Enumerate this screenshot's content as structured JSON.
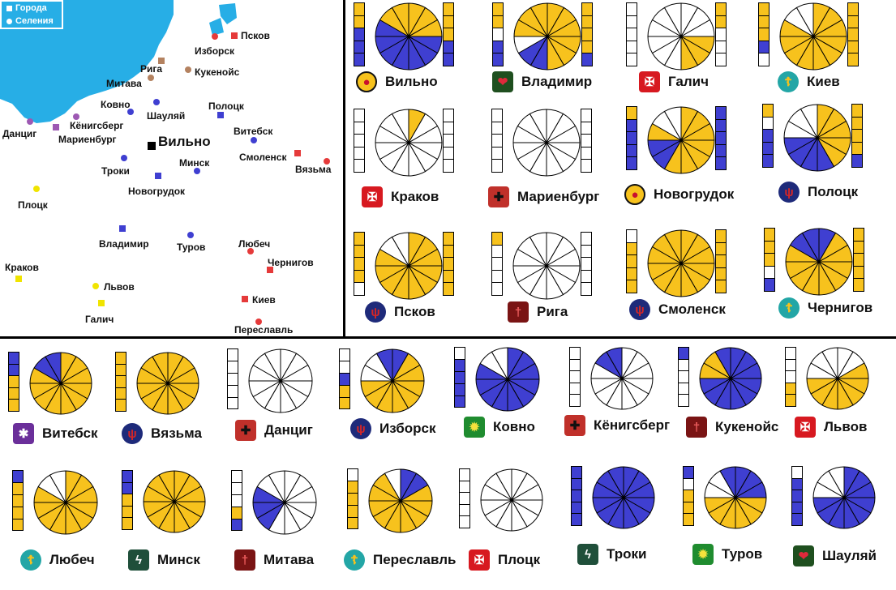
{
  "colors": {
    "sea": "#27aee6",
    "gold": "#f7c21d",
    "blue": "#3f3fd1",
    "empty": "#ffffff",
    "outline": "#000000",
    "town_red": "#e53a3a",
    "town_blue": "#3f3fd1",
    "town_yellow": "#f0e400",
    "town_brown": "#b48260",
    "town_purple": "#9d59b3",
    "town_black": "#000000"
  },
  "legend": {
    "cities_label": "Города",
    "settlements_label": "Селения"
  },
  "map": {
    "cities": [
      {
        "id": "pskov",
        "name": "Псков",
        "marker": "square",
        "color": "red"
      },
      {
        "id": "izborsk",
        "name": "Изборск",
        "marker": "circle",
        "color": "red"
      },
      {
        "id": "riga",
        "name": "Рига",
        "marker": "square",
        "color": "brown"
      },
      {
        "id": "kukenois",
        "name": "Кукенойс",
        "marker": "circle",
        "color": "brown"
      },
      {
        "id": "mitava",
        "name": "Митава",
        "marker": "circle",
        "color": "brown"
      },
      {
        "id": "kovno",
        "name": "Ковно",
        "marker": "circle",
        "color": "blue"
      },
      {
        "id": "shaulyai",
        "name": "Шауляй",
        "marker": "circle",
        "color": "blue"
      },
      {
        "id": "polotsk",
        "name": "Полоцк",
        "marker": "square",
        "color": "blue"
      },
      {
        "id": "dantsig",
        "name": "Данциг",
        "marker": "circle",
        "color": "purple"
      },
      {
        "id": "konigsberg",
        "name": "Кёнигсберг",
        "marker": "circle",
        "color": "purple"
      },
      {
        "id": "marienburg",
        "name": "Мариенбург",
        "marker": "square",
        "color": "purple"
      },
      {
        "id": "vilno",
        "name": "Вильно",
        "marker": "square",
        "color": "black"
      },
      {
        "id": "vitebsk",
        "name": "Витебск",
        "marker": "circle",
        "color": "blue"
      },
      {
        "id": "smolensk",
        "name": "Смоленск",
        "marker": "square",
        "color": "red"
      },
      {
        "id": "vyazma",
        "name": "Вязьма",
        "marker": "circle",
        "color": "red"
      },
      {
        "id": "minsk",
        "name": "Минск",
        "marker": "circle",
        "color": "blue"
      },
      {
        "id": "troki",
        "name": "Троки",
        "marker": "circle",
        "color": "blue"
      },
      {
        "id": "novogrudok",
        "name": "Новогрудок",
        "marker": "square",
        "color": "blue"
      },
      {
        "id": "plotsk",
        "name": "Плоцк",
        "marker": "circle",
        "color": "yellow"
      },
      {
        "id": "vladimir",
        "name": "Владимир",
        "marker": "square",
        "color": "blue"
      },
      {
        "id": "turov",
        "name": "Туров",
        "marker": "circle",
        "color": "blue"
      },
      {
        "id": "lyubech",
        "name": "Любеч",
        "marker": "circle",
        "color": "red"
      },
      {
        "id": "chernigov",
        "name": "Чернигов",
        "marker": "square",
        "color": "red"
      },
      {
        "id": "krakov",
        "name": "Краков",
        "marker": "square",
        "color": "yellow"
      },
      {
        "id": "lvov",
        "name": "Львов",
        "marker": "circle",
        "color": "yellow"
      },
      {
        "id": "galich",
        "name": "Галич",
        "marker": "square",
        "color": "yellow"
      },
      {
        "id": "kiev",
        "name": "Киев",
        "marker": "square",
        "color": "red"
      },
      {
        "id": "pereslavl",
        "name": "Переславль",
        "marker": "circle",
        "color": "red"
      }
    ]
  },
  "panels": [
    {
      "name": "Вильно",
      "emblem": "flame",
      "pie": [
        "gold",
        "gold",
        "gold",
        "blue",
        "blue",
        "blue",
        "blue",
        "blue",
        "blue",
        "blue",
        "gold",
        "gold"
      ],
      "left": [
        "gold",
        "gold",
        "blue",
        "blue",
        "blue"
      ],
      "right": [
        "gold",
        "gold",
        "gold",
        "blue",
        "blue"
      ]
    },
    {
      "name": "Владимир",
      "emblem": "heart",
      "pie": [
        "gold",
        "gold",
        "gold",
        "gold",
        "gold",
        "gold",
        "blue",
        "blue",
        "white",
        "gold",
        "gold",
        "gold"
      ],
      "left": [
        "gold",
        "gold",
        "white",
        "blue",
        "blue"
      ],
      "right": [
        "gold",
        "gold",
        "gold",
        "gold",
        "blue"
      ]
    },
    {
      "name": "Галич",
      "emblem": "eagle",
      "pie": [
        "white",
        "white",
        "white",
        "gold",
        "gold",
        "gold",
        "white",
        "white",
        "white",
        "white",
        "white",
        "white"
      ],
      "left": [
        "white",
        "white",
        "white",
        "white",
        "white"
      ],
      "right": [
        "gold",
        "gold",
        "white",
        "white",
        "white"
      ]
    },
    {
      "name": "Киев",
      "emblem": "cross",
      "pie": [
        "gold",
        "gold",
        "gold",
        "gold",
        "gold",
        "gold",
        "gold",
        "gold",
        "gold",
        "gold",
        "white",
        "white"
      ],
      "left": [
        "gold",
        "gold",
        "gold",
        "blue",
        "white"
      ],
      "right": [
        "gold",
        "gold",
        "gold",
        "gold",
        "gold"
      ]
    },
    {
      "name": "Краков",
      "emblem": "eagle",
      "pie": [
        "gold",
        "white",
        "white",
        "white",
        "white",
        "white",
        "white",
        "white",
        "white",
        "white",
        "white",
        "white"
      ],
      "left": [
        "white",
        "white",
        "white",
        "white",
        "white"
      ],
      "right": [
        "white",
        "white",
        "white",
        "white",
        "white"
      ]
    },
    {
      "name": "Мариенбург",
      "emblem": "blackcross",
      "pie": [
        "white",
        "white",
        "white",
        "white",
        "white",
        "white",
        "white",
        "white",
        "white",
        "white",
        "white",
        "white"
      ],
      "left": [
        "white",
        "white",
        "white",
        "white",
        "white"
      ],
      "right": [
        "white",
        "white",
        "white",
        "white",
        "white"
      ]
    },
    {
      "name": "Новогрудок",
      "emblem": "flame",
      "pie": [
        "gold",
        "gold",
        "gold",
        "gold",
        "gold",
        "gold",
        "gold",
        "blue",
        "blue",
        "gold",
        "white",
        "white"
      ],
      "left": [
        "gold",
        "blue",
        "blue",
        "blue",
        "blue"
      ],
      "right": [
        "blue",
        "blue",
        "blue",
        "blue",
        "blue"
      ]
    },
    {
      "name": "Полоцк",
      "emblem": "trident",
      "pie": [
        "gold",
        "gold",
        "gold",
        "gold",
        "gold",
        "blue",
        "blue",
        "blue",
        "blue",
        "white",
        "white",
        "white"
      ],
      "left": [
        "gold",
        "white",
        "blue",
        "blue",
        "blue"
      ],
      "right": [
        "gold",
        "gold",
        "gold",
        "gold",
        "blue"
      ]
    },
    {
      "name": "Псков",
      "emblem": "trident",
      "pie": [
        "gold",
        "gold",
        "gold",
        "gold",
        "gold",
        "gold",
        "gold",
        "gold",
        "gold",
        "gold",
        "white",
        "white"
      ],
      "left": [
        "gold",
        "gold",
        "gold",
        "gold",
        "white"
      ],
      "right": [
        "gold",
        "gold",
        "gold",
        "gold",
        "gold"
      ]
    },
    {
      "name": "Рига",
      "emblem": "staff",
      "pie": [
        "white",
        "white",
        "white",
        "white",
        "white",
        "white",
        "white",
        "white",
        "white",
        "white",
        "white",
        "white"
      ],
      "left": [
        "gold",
        "white",
        "white",
        "white",
        "white"
      ],
      "right": [
        "white",
        "white",
        "white",
        "white",
        "white"
      ]
    },
    {
      "name": "Смоленск",
      "emblem": "trident",
      "pie": [
        "gold",
        "gold",
        "gold",
        "gold",
        "gold",
        "gold",
        "gold",
        "gold",
        "gold",
        "gold",
        "gold",
        "gold"
      ],
      "left": [
        "white",
        "gold",
        "gold",
        "gold",
        "gold"
      ],
      "right": [
        "gold",
        "gold",
        "gold",
        "gold",
        "gold"
      ]
    },
    {
      "name": "Чернигов",
      "emblem": "cross",
      "pie": [
        "blue",
        "gold",
        "gold",
        "gold",
        "gold",
        "gold",
        "gold",
        "gold",
        "gold",
        "gold",
        "blue",
        "blue"
      ],
      "left": [
        "gold",
        "gold",
        "gold",
        "white",
        "blue"
      ],
      "right": [
        "gold",
        "gold",
        "gold",
        "gold",
        "gold"
      ]
    },
    {
      "name": "Витебск",
      "emblem": "star",
      "pie": [
        "gold",
        "gold",
        "gold",
        "gold",
        "gold",
        "gold",
        "gold",
        "gold",
        "gold",
        "gold",
        "blue",
        "blue"
      ],
      "left": [
        "blue",
        "blue",
        "gold",
        "gold",
        "gold"
      ],
      "right": []
    },
    {
      "name": "Вязьма",
      "emblem": "trident",
      "pie": [
        "gold",
        "gold",
        "gold",
        "gold",
        "gold",
        "gold",
        "gold",
        "gold",
        "gold",
        "gold",
        "gold",
        "gold"
      ],
      "left": [
        "gold",
        "gold",
        "gold",
        "gold",
        "gold"
      ],
      "right": []
    },
    {
      "name": "Данциг",
      "emblem": "blackcross",
      "pie": [
        "white",
        "white",
        "white",
        "white",
        "white",
        "white",
        "white",
        "white",
        "white",
        "white",
        "white",
        "white"
      ],
      "left": [
        "white",
        "white",
        "white",
        "white",
        "white"
      ],
      "right": []
    },
    {
      "name": "Изборск",
      "emblem": "trident",
      "pie": [
        "blue",
        "gold",
        "gold",
        "gold",
        "gold",
        "gold",
        "gold",
        "gold",
        "gold",
        "white",
        "white",
        "blue"
      ],
      "left": [
        "white",
        "white",
        "blue",
        "gold",
        "gold"
      ],
      "right": []
    },
    {
      "name": "Ковно",
      "emblem": "sun",
      "pie": [
        "blue",
        "blue",
        "blue",
        "blue",
        "blue",
        "blue",
        "blue",
        "blue",
        "blue",
        "blue",
        "white",
        "white"
      ],
      "left": [
        "white",
        "blue",
        "blue",
        "blue",
        "blue"
      ],
      "right": []
    },
    {
      "name": "Кёнигсберг",
      "emblem": "blackcross",
      "pie": [
        "white",
        "white",
        "white",
        "white",
        "white",
        "white",
        "white",
        "white",
        "white",
        "white",
        "blue",
        "blue"
      ],
      "left": [
        "white",
        "white",
        "white",
        "white",
        "white"
      ],
      "right": []
    },
    {
      "name": "Кукенойс",
      "emblem": "staff",
      "pie": [
        "blue",
        "blue",
        "blue",
        "blue",
        "blue",
        "blue",
        "blue",
        "blue",
        "blue",
        "gold",
        "gold",
        "blue"
      ],
      "left": [
        "blue",
        "white",
        "white",
        "white",
        "white"
      ],
      "right": []
    },
    {
      "name": "Львов",
      "emblem": "eagle",
      "pie": [
        "white",
        "white",
        "gold",
        "gold",
        "gold",
        "gold",
        "gold",
        "gold",
        "gold",
        "white",
        "white",
        "white"
      ],
      "left": [
        "white",
        "white",
        "white",
        "gold",
        "gold"
      ],
      "right": []
    },
    {
      "name": "Любеч",
      "emblem": "cross",
      "pie": [
        "gold",
        "gold",
        "gold",
        "gold",
        "gold",
        "gold",
        "gold",
        "gold",
        "gold",
        "gold",
        "white",
        "white"
      ],
      "left": [
        "blue",
        "gold",
        "gold",
        "gold",
        "gold"
      ],
      "right": []
    },
    {
      "name": "Минск",
      "emblem": "bolt",
      "pie": [
        "gold",
        "gold",
        "gold",
        "gold",
        "gold",
        "gold",
        "gold",
        "gold",
        "gold",
        "gold",
        "gold",
        "gold"
      ],
      "left": [
        "blue",
        "blue",
        "gold",
        "gold",
        "gold"
      ],
      "right": []
    },
    {
      "name": "Митава",
      "emblem": "staff",
      "pie": [
        "white",
        "white",
        "white",
        "white",
        "white",
        "white",
        "white",
        "blue",
        "blue",
        "blue",
        "white",
        "white"
      ],
      "left": [
        "white",
        "white",
        "white",
        "gold",
        "blue"
      ],
      "right": []
    },
    {
      "name": "Переславль",
      "emblem": "cross",
      "pie": [
        "blue",
        "blue",
        "gold",
        "gold",
        "gold",
        "gold",
        "gold",
        "gold",
        "gold",
        "gold",
        "gold",
        "white"
      ],
      "left": [
        "white",
        "gold",
        "gold",
        "gold",
        "gold"
      ],
      "right": []
    },
    {
      "name": "Плоцк",
      "emblem": "eagle",
      "pie": [
        "white",
        "white",
        "white",
        "white",
        "white",
        "white",
        "white",
        "white",
        "white",
        "white",
        "white",
        "white"
      ],
      "left": [
        "white",
        "white",
        "white",
        "white",
        "white"
      ],
      "right": []
    },
    {
      "name": "Троки",
      "emblem": "bolt",
      "pie": [
        "blue",
        "blue",
        "blue",
        "blue",
        "blue",
        "blue",
        "blue",
        "blue",
        "blue",
        "blue",
        "blue",
        "blue"
      ],
      "left": [
        "blue",
        "blue",
        "blue",
        "blue",
        "blue"
      ],
      "right": []
    },
    {
      "name": "Туров",
      "emblem": "sun",
      "pie": [
        "blue",
        "blue",
        "blue",
        "gold",
        "gold",
        "gold",
        "gold",
        "gold",
        "gold",
        "white",
        "white",
        "blue"
      ],
      "left": [
        "blue",
        "white",
        "gold",
        "gold",
        "gold"
      ],
      "right": []
    },
    {
      "name": "Шауляй",
      "emblem": "heart",
      "pie": [
        "blue",
        "blue",
        "blue",
        "blue",
        "blue",
        "blue",
        "blue",
        "blue",
        "blue",
        "white",
        "white",
        "white"
      ],
      "left": [
        "white",
        "blue",
        "blue",
        "blue",
        "blue"
      ],
      "right": []
    }
  ]
}
